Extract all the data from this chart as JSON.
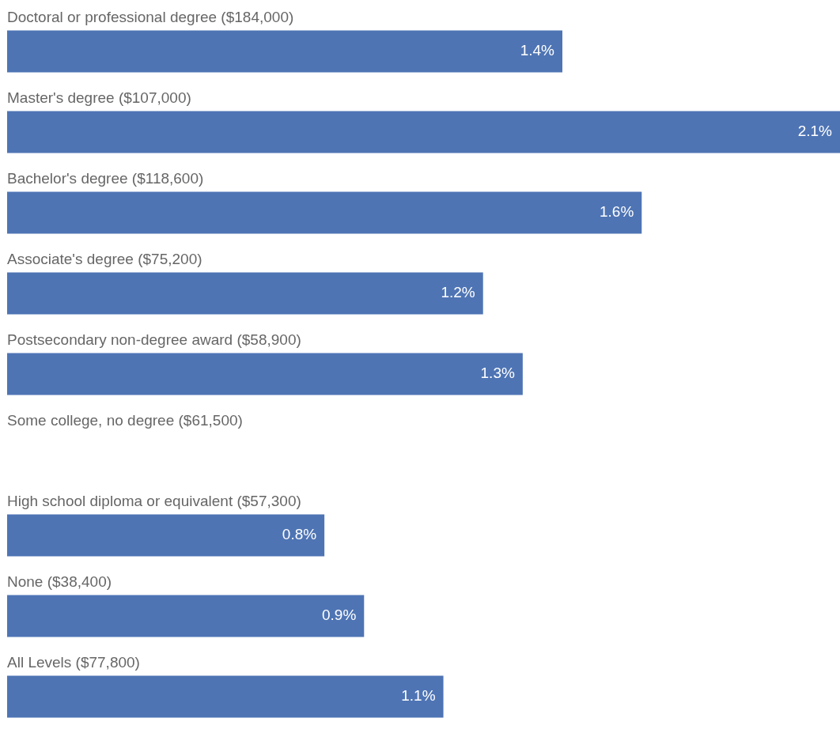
{
  "chart_data": {
    "type": "bar",
    "orientation": "horizontal",
    "categories": [
      "Doctoral or professional degree ($184,000)",
      "Master's degree ($107,000)",
      "Bachelor's degree ($118,600)",
      "Associate's degree ($75,200)",
      "Postsecondary non-degree award ($58,900)",
      "Some college, no degree ($61,500)",
      "High school diploma or equivalent ($57,300)",
      "None ($38,400)",
      "All Levels ($77,800)"
    ],
    "values": [
      1.4,
      2.1,
      1.6,
      1.2,
      1.3,
      null,
      0.8,
      0.9,
      1.1
    ],
    "value_labels": [
      "1.4%",
      "2.1%",
      "1.6%",
      "1.2%",
      "1.3%",
      null,
      "0.8%",
      "0.9%",
      "1.1%"
    ],
    "color": "#4e74b4"
  }
}
